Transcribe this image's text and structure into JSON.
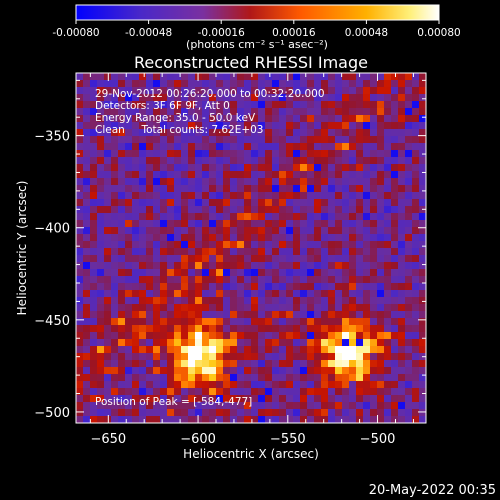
{
  "chart_data": [
    {
      "type": "colorbar",
      "tick_labels": [
        "-0.00080",
        "-0.00048",
        "-0.00016",
        "0.00016",
        "0.00048",
        "0.00080"
      ],
      "range": [
        -0.0008,
        0.0008
      ],
      "unit_label": "(photons cm⁻² s⁻¹ asec⁻²)",
      "colors": [
        "#0000ff",
        "#6a35b5",
        "#a82020",
        "#ff7a00",
        "#ffe066",
        "#ffffff"
      ]
    },
    {
      "type": "heatmap",
      "title": "Reconstructed RHESSI Image",
      "xlabel": "Heliocentric X (arcsec)",
      "ylabel": "Heliocentric Y (arcsec)",
      "xlim": [
        -668,
        -473
      ],
      "ylim": [
        -506,
        -316
      ],
      "x_ticks": [
        -650,
        -600,
        -550,
        -500
      ],
      "y_ticks": [
        -500,
        -450,
        -400,
        -350
      ],
      "annotations": [
        "29-Nov-2012 00:26:20.000 to 00:32:20.000",
        "Detectors: 3F 6F 9F, Att 0",
        "Energy Range: 35.0 - 50.0 keV",
        "Clean     Total counts: 7.62E+03"
      ],
      "peak_label": "Position of Peak = [-584,-477]",
      "peak_position": [
        -584,
        -477
      ],
      "bright_sources": [
        {
          "x": -599,
          "y": -469
        },
        {
          "x": -516,
          "y": -467
        }
      ]
    }
  ],
  "footer": {
    "timestamp": "20-May-2022 00:35"
  }
}
